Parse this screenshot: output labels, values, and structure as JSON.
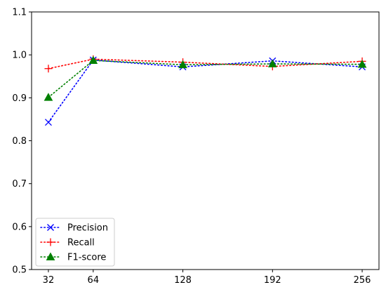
{
  "chart_data": {
    "type": "line",
    "x": [
      32,
      64,
      128,
      192,
      256
    ],
    "xticks": [
      "32",
      "64",
      "128",
      "192",
      "256"
    ],
    "xlim": [
      20,
      268
    ],
    "ylim": [
      0.5,
      1.1
    ],
    "yticks": [
      "0.5",
      "0.6",
      "0.7",
      "0.8",
      "0.9",
      "1.0",
      "1.1"
    ],
    "ytick_values": [
      0.5,
      0.6,
      0.7,
      0.8,
      0.9,
      1.0,
      1.1
    ],
    "grid": false,
    "legend_position": "bottom-left",
    "series": [
      {
        "name": "Precision",
        "color": "#0000ff",
        "marker": "x",
        "values": [
          0.843,
          0.988,
          0.972,
          0.986,
          0.972
        ]
      },
      {
        "name": "Recall",
        "color": "#ff0000",
        "marker": "+",
        "values": [
          0.968,
          0.99,
          0.983,
          0.973,
          0.985
        ]
      },
      {
        "name": "F1-score",
        "color": "#008000",
        "marker": "triangle",
        "values": [
          0.901,
          0.987,
          0.977,
          0.979,
          0.978
        ]
      }
    ]
  }
}
